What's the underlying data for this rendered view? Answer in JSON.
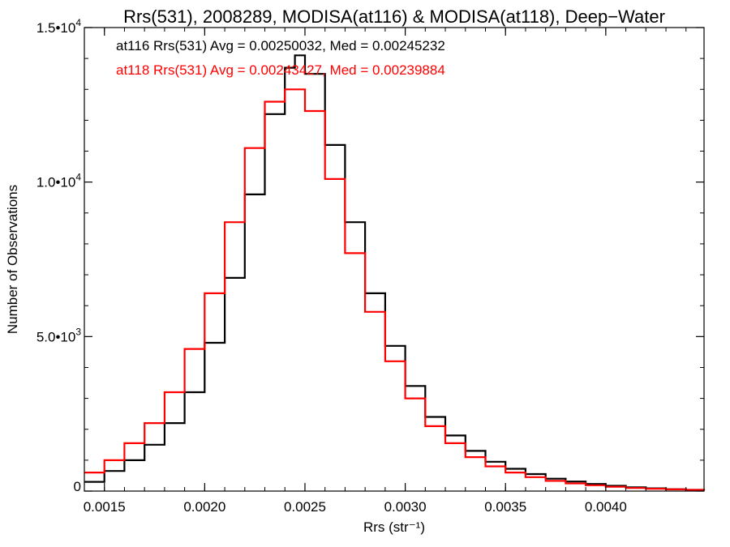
{
  "chart_data": {
    "type": "line",
    "title": "Rrs(531), 2008289, MODISA(at116) & MODISA(at118), Deep−Water",
    "xlabel": "Rrs (str⁻¹)",
    "ylabel": "Number of Observations",
    "xlim": [
      0.0014,
      0.00449
    ],
    "ylim": [
      0,
      15000
    ],
    "x_ticks": [
      0.0015,
      0.002,
      0.0025,
      0.003,
      0.0035,
      0.004
    ],
    "x_tick_labels": [
      "0.0015",
      "0.0020",
      "0.0025",
      "0.0030",
      "0.0035",
      "0.0040"
    ],
    "y_ticks": [
      0,
      5000,
      10000,
      15000
    ],
    "y_tick_labels": [
      {
        "mantissa": "0",
        "exponent": ""
      },
      {
        "mantissa": "5.0•10",
        "exponent": "3"
      },
      {
        "mantissa": "1.0•10",
        "exponent": "4"
      },
      {
        "mantissa": "1.5•10",
        "exponent": "4"
      }
    ],
    "grid": false,
    "annotations": [
      {
        "text": "at116 Rrs(531) Avg = 0.00250032, Med = 0.00245232",
        "color": "#000000"
      },
      {
        "text": "at118 Rrs(531) Avg = 0.00243427, Med = 0.00239884",
        "color": "#ff0000"
      }
    ],
    "series": [
      {
        "name": "at116",
        "color": "#000000",
        "step": true,
        "x": [
          0.0014,
          0.0015,
          0.0016,
          0.0017,
          0.0018,
          0.0019,
          0.002,
          0.0021,
          0.0022,
          0.0023,
          0.0024,
          0.00245,
          0.0025,
          0.0026,
          0.0027,
          0.0028,
          0.0029,
          0.003,
          0.0031,
          0.0032,
          0.0033,
          0.0034,
          0.0035,
          0.0036,
          0.0037,
          0.0038,
          0.0039,
          0.004,
          0.0041,
          0.0042,
          0.0043,
          0.0044,
          0.00449
        ],
        "y": [
          300,
          650,
          1000,
          1500,
          2200,
          3200,
          4800,
          6900,
          9600,
          12200,
          13700,
          14100,
          13500,
          11200,
          8700,
          6400,
          4700,
          3400,
          2400,
          1800,
          1300,
          950,
          720,
          550,
          400,
          310,
          230,
          170,
          120,
          90,
          60,
          40,
          30
        ]
      },
      {
        "name": "at118",
        "color": "#ff0000",
        "step": true,
        "x": [
          0.0014,
          0.0015,
          0.0016,
          0.0017,
          0.0018,
          0.0019,
          0.002,
          0.0021,
          0.0022,
          0.0023,
          0.0024,
          0.0025,
          0.0026,
          0.0027,
          0.0028,
          0.0029,
          0.003,
          0.0031,
          0.0032,
          0.0033,
          0.0034,
          0.0035,
          0.0036,
          0.0037,
          0.0038,
          0.0039,
          0.004,
          0.0041,
          0.0042,
          0.0043,
          0.0044,
          0.00449
        ],
        "y": [
          600,
          1000,
          1550,
          2200,
          3200,
          4600,
          6400,
          8700,
          11100,
          12600,
          13000,
          12300,
          10100,
          7700,
          5800,
          4200,
          3000,
          2100,
          1550,
          1100,
          800,
          600,
          450,
          330,
          250,
          190,
          140,
          100,
          75,
          55,
          40,
          30
        ]
      }
    ]
  }
}
